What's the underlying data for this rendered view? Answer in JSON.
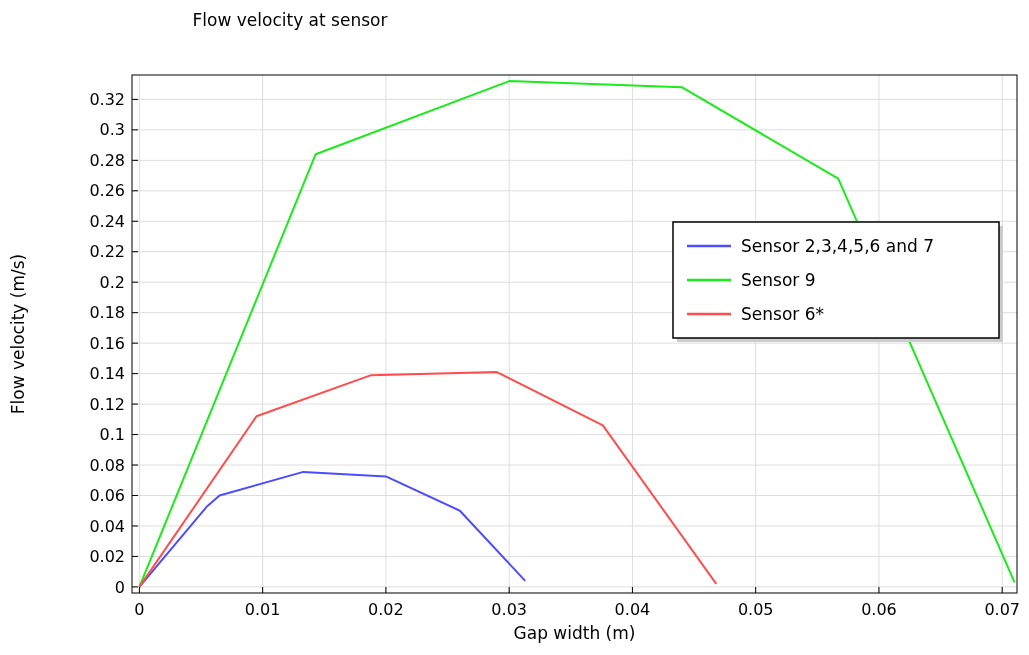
{
  "chart_data": {
    "type": "line",
    "title": "Flow velocity at sensor",
    "xlabel": "Gap width (m)",
    "ylabel": "Flow velocity (m/s)",
    "xlim": [
      -0.0006,
      0.0712
    ],
    "ylim": [
      -0.004,
      0.336
    ],
    "xticks": [
      0,
      0.01,
      0.02,
      0.03,
      0.04,
      0.05,
      0.06,
      0.07
    ],
    "yticks": [
      0,
      0.02,
      0.04,
      0.06,
      0.08,
      0.1,
      0.12,
      0.14,
      0.16,
      0.18,
      0.2,
      0.22,
      0.24,
      0.26,
      0.28,
      0.3,
      0.32
    ],
    "grid": true,
    "legend": "right",
    "series": [
      {
        "name": "Sensor 2,3,4,5,6 and 7",
        "color": "#4d4dff",
        "x": [
          0,
          0.0055,
          0.0065,
          0.0133,
          0.02,
          0.026,
          0.0313
        ],
        "values": [
          0,
          0.053,
          0.06,
          0.0755,
          0.0725,
          0.05,
          0.004
        ]
      },
      {
        "name": "Sensor 9",
        "color": "#1aeb1a",
        "x": [
          0,
          0.0143,
          0.03,
          0.044,
          0.0567,
          0.071
        ],
        "values": [
          0,
          0.284,
          0.332,
          0.328,
          0.268,
          0.003
        ]
      },
      {
        "name": "Sensor 6*",
        "color": "#ff4d4d",
        "x": [
          0,
          0.0095,
          0.0188,
          0.029,
          0.0376,
          0.0468
        ],
        "values": [
          0,
          0.112,
          0.139,
          0.141,
          0.106,
          0.002
        ]
      }
    ]
  }
}
